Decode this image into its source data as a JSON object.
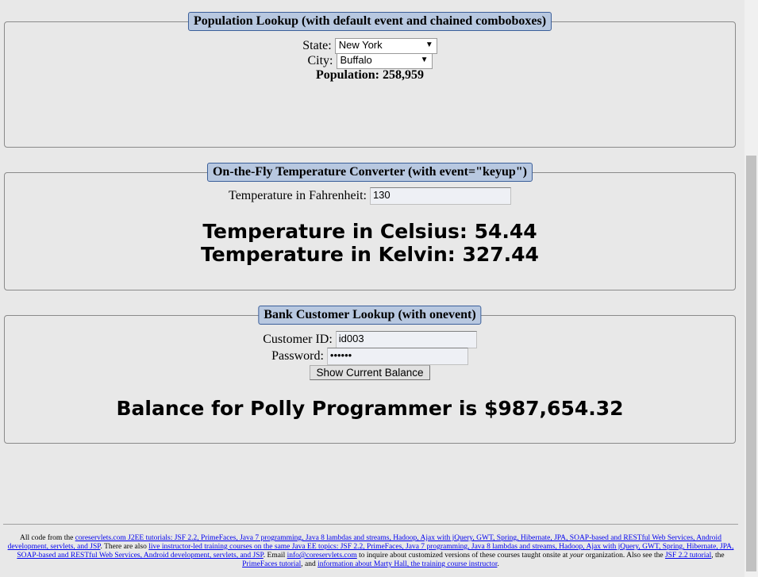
{
  "population": {
    "legend": "Population Lookup (with default event and chained comboboxes)",
    "state_label": "State:",
    "state_value": "New York",
    "city_label": "City:",
    "city_value": "Buffalo",
    "population_text": "Population: 258,959"
  },
  "temperature": {
    "legend": "On-the-Fly Temperature Converter (with event=\"keyup\")",
    "fahrenheit_label": "Temperature in Fahrenheit:",
    "fahrenheit_value": "130",
    "celsius_text": "Temperature in Celsius: 54.44",
    "kelvin_text": "Temperature in Kelvin: 327.44"
  },
  "bank": {
    "legend": "Bank Customer Lookup (with onevent)",
    "customer_id_label": "Customer ID:",
    "customer_id_value": "id003",
    "password_label": "Password:",
    "password_value": "••••••",
    "button_label": "Show Current Balance",
    "balance_text": "Balance for Polly Programmer is $987,654.32"
  },
  "footer": {
    "t1": "All code from the ",
    "l1": "coreservlets.com J2EE tutorials: JSF 2.2, PrimeFaces, Java 7 programming, Java 8 lambdas and streams, Hadoop, Ajax with jQuery, GWT, Spring, Hibernate, JPA, SOAP-based and RESTful Web Services, Android development, servlets, and JSP",
    "t2": ". There are also ",
    "l2": "live instructor-led training courses on the same Java EE topics: JSF 2.2, PrimeFaces, Java 7 programming, Java 8 lambdas and streams, Hadoop, Ajax with jQuery, GWT, Spring, Hibernate, JPA, SOAP-based and RESTful Web Services, Android development, servlets, and JSP",
    "t3": ". Email ",
    "l3": "info@coreservlets.com",
    "t4": " to inquire about customized versions of these courses taught onsite at ",
    "t4_em": "your",
    "t5": " organization. Also see the ",
    "l4": "JSF 2.2 tutorial",
    "t6": ", the ",
    "l5": "PrimeFaces tutorial",
    "t7": ", and ",
    "l6": "information about Marty Hall, the training course instructor",
    "t8": "."
  }
}
